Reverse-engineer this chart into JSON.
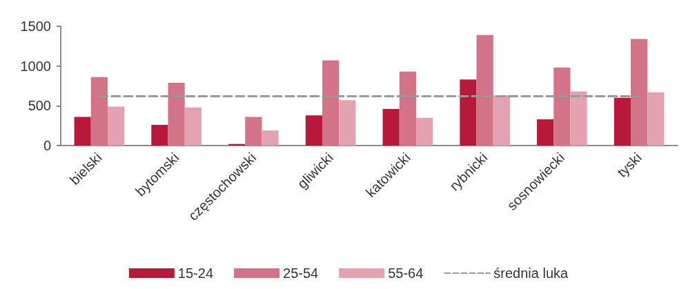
{
  "chart_data": {
    "type": "bar",
    "categories": [
      "bielski",
      "bytomski",
      "częstochowski",
      "gliwicki",
      "katowicki",
      "rybnicki",
      "sosnowiecki",
      "tyski"
    ],
    "series": [
      {
        "name": "15-24",
        "color": "#b8193a",
        "values": [
          360,
          260,
          20,
          380,
          460,
          830,
          330,
          600
        ]
      },
      {
        "name": "25-54",
        "color": "#d37387",
        "values": [
          860,
          790,
          360,
          1070,
          930,
          1390,
          980,
          1340
        ]
      },
      {
        "name": "55-64",
        "color": "#e4a2ae",
        "values": [
          490,
          480,
          190,
          570,
          350,
          630,
          680,
          670
        ]
      },
      {
        "name": "średnia luka",
        "type": "line",
        "color": "#999999",
        "line_style": "dashed",
        "marker": "none",
        "values": [
          620,
          620,
          620,
          620,
          620,
          620,
          620,
          620
        ]
      }
    ],
    "ylim": [
      0,
      1500
    ],
    "yticks": [
      0,
      500,
      1000,
      1500
    ],
    "grid": false,
    "legend": "bottom"
  }
}
